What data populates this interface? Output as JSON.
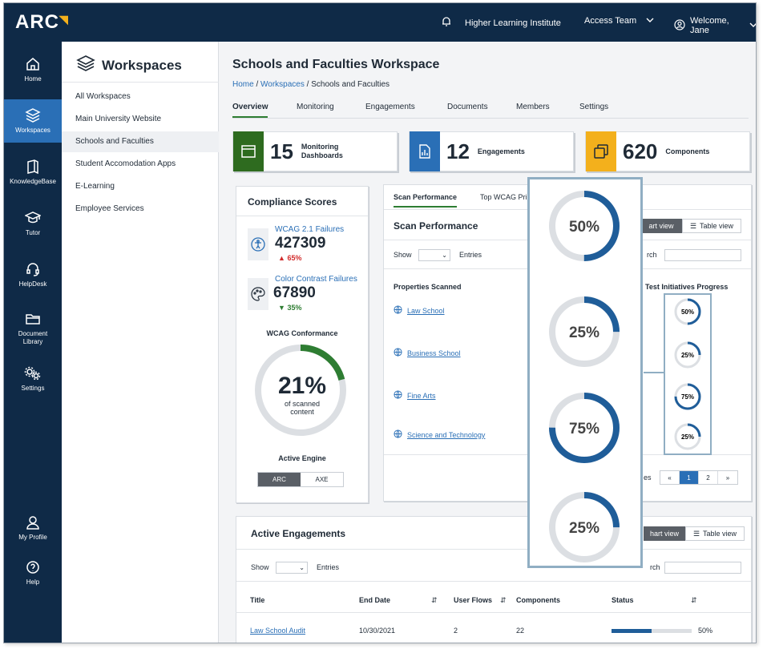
{
  "app": {
    "logo": "ARC",
    "org": "Higher Learning Institute",
    "team": "Access Team",
    "welcome": "Welcome, Jane"
  },
  "leftnav": [
    {
      "label": "Home",
      "icon": "home-icon"
    },
    {
      "label": "Workspaces",
      "icon": "layers-icon",
      "active": true
    },
    {
      "label": "KnowledgeBase",
      "icon": "book-icon"
    },
    {
      "label": "Tutor",
      "icon": "graduation-cap-icon"
    },
    {
      "label": "HelpDesk",
      "icon": "headset-icon"
    },
    {
      "label": "Document Library",
      "icon": "folder-icon"
    },
    {
      "label": "Settings",
      "icon": "gears-icon"
    },
    {
      "label": "My Profile",
      "icon": "user-icon"
    },
    {
      "label": "Help",
      "icon": "help-icon"
    }
  ],
  "workspaces": {
    "title": "Workspaces",
    "items": [
      "All Workspaces",
      "Main University Website",
      "Schools and Faculties",
      "Student Accomodation Apps",
      "E-Learning",
      "Employee Services"
    ],
    "active_index": 2
  },
  "page": {
    "title": "Schools and Faculties Workspace",
    "breadcrumb": [
      "Home",
      "Workspaces",
      "Schools and Faculties"
    ],
    "breadcrumb_sep": " / ",
    "tabs": [
      "Overview",
      "Monitoring",
      "Engagements",
      "Documents",
      "Members",
      "Settings"
    ],
    "active_tab": "Overview"
  },
  "stats": [
    {
      "value": "15",
      "label_line1": "Monitoring",
      "label_line2": "Dashboards",
      "color": "#2e6b1f"
    },
    {
      "value": "12",
      "label_line1": "Engagements",
      "label_line2": "",
      "color": "#2a6fb6"
    },
    {
      "value": "620",
      "label_line1": "Components",
      "label_line2": "",
      "color": "#f3b01c"
    }
  ],
  "compliance": {
    "title": "Compliance Scores",
    "wcag_failures": {
      "label": "WCAG 2.1 Failures",
      "value": "427309",
      "delta": "65%"
    },
    "contrast_failures": {
      "label": "Color Contrast Failures",
      "value": "67890",
      "delta": "35%"
    },
    "conformance_title": "WCAG Conformance",
    "conformance_percent": 21,
    "conformance_value": "21%",
    "conformance_caption_1": "of scanned",
    "conformance_caption_2": "content",
    "engine_title": "Active Engine",
    "engines": [
      "ARC",
      "AXE"
    ],
    "active_engine": "ARC"
  },
  "scan": {
    "tabs": [
      "Scan Performance",
      "Top WCAG Pri"
    ],
    "title": "Scan Performance",
    "chart_view": "art view",
    "table_view": "Table view",
    "show": "Show",
    "entries": "Entries",
    "search_partial": "rch",
    "col_properties": "Properties Scanned",
    "col_progress": "Test Initiatives Progress",
    "properties": [
      "Law School",
      "Business School",
      "Fine Arts",
      "Science and Technology"
    ],
    "progress_values": [
      50,
      25,
      75,
      25
    ],
    "progress_labels": [
      "50%",
      "25%",
      "75%",
      "25%"
    ],
    "entries_partial": "es",
    "pages": [
      "«",
      "1",
      "2",
      "»"
    ],
    "active_page": "1"
  },
  "engagements": {
    "title": "Active Engagements",
    "chart_view": "hart view",
    "table_view": "Table view",
    "show": "Show",
    "entries": "Entries",
    "search_partial": "rch",
    "columns": [
      "Title",
      "End Date",
      "User Flows",
      "Components",
      "Status"
    ],
    "sort_glyph": "⇵",
    "rows": [
      {
        "title": "Law School Audit",
        "end_date": "10/30/2021",
        "user_flows": "2",
        "components": "22",
        "status_value": 50,
        "status_label": "50%"
      }
    ]
  },
  "colors": {
    "navy": "#0f2a47",
    "blue": "#2a6fb6",
    "ring_blue": "#1f5d99",
    "green": "#2e7d32",
    "red": "#d12b2b",
    "gold": "#f3b01c"
  }
}
